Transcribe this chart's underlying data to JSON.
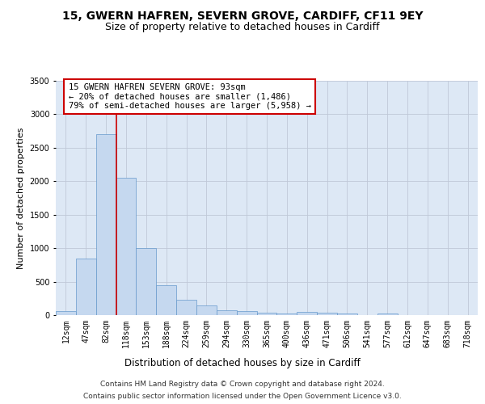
{
  "title": "15, GWERN HAFREN, SEVERN GROVE, CARDIFF, CF11 9EY",
  "subtitle": "Size of property relative to detached houses in Cardiff",
  "xlabel": "Distribution of detached houses by size in Cardiff",
  "ylabel": "Number of detached properties",
  "bin_labels": [
    "12sqm",
    "47sqm",
    "82sqm",
    "118sqm",
    "153sqm",
    "188sqm",
    "224sqm",
    "259sqm",
    "294sqm",
    "330sqm",
    "365sqm",
    "400sqm",
    "436sqm",
    "471sqm",
    "506sqm",
    "541sqm",
    "577sqm",
    "612sqm",
    "647sqm",
    "683sqm",
    "718sqm"
  ],
  "bar_heights": [
    55,
    850,
    2700,
    2050,
    1000,
    450,
    230,
    150,
    70,
    55,
    40,
    25,
    45,
    35,
    20,
    5,
    20,
    0,
    0,
    0,
    0
  ],
  "bar_color": "#c5d8ef",
  "bar_edgecolor": "#6699cc",
  "vline_color": "#cc0000",
  "vline_x_index": 2,
  "ylim": [
    0,
    3500
  ],
  "yticks": [
    0,
    500,
    1000,
    1500,
    2000,
    2500,
    3000,
    3500
  ],
  "annotation_text": "15 GWERN HAFREN SEVERN GROVE: 93sqm\n← 20% of detached houses are smaller (1,486)\n79% of semi-detached houses are larger (5,958) →",
  "annotation_box_facecolor": "#ffffff",
  "annotation_box_edgecolor": "#cc0000",
  "footer_line1": "Contains HM Land Registry data © Crown copyright and database right 2024.",
  "footer_line2": "Contains public sector information licensed under the Open Government Licence v3.0.",
  "plot_background_color": "#dde8f5",
  "grid_color": "#c0c8d8",
  "title_fontsize": 10,
  "subtitle_fontsize": 9,
  "xlabel_fontsize": 8.5,
  "ylabel_fontsize": 8,
  "tick_fontsize": 7,
  "annotation_fontsize": 7.5,
  "footer_fontsize": 6.5
}
